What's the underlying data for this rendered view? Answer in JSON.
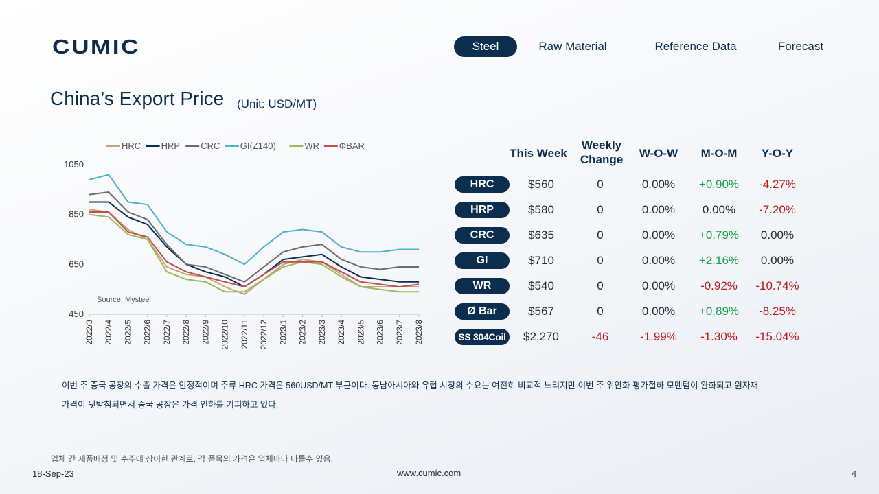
{
  "brand": {
    "name": "CUMIC"
  },
  "nav": {
    "items": [
      {
        "label": "Steel",
        "active": true
      },
      {
        "label": "Raw Material",
        "active": false
      },
      {
        "label": "Reference Data",
        "active": false
      },
      {
        "label": "Forecast",
        "active": false
      }
    ]
  },
  "page": {
    "title": "China’s Export Price",
    "unit": "(Unit: USD/MT)"
  },
  "chart_data": {
    "type": "line",
    "source": "Source: Mysteel",
    "ylim": [
      450,
      1050
    ],
    "yticks": [
      450,
      650,
      850,
      1050
    ],
    "x": [
      "2022/3",
      "2022/4",
      "2022/5",
      "2022/6",
      "2022/7",
      "2022/8",
      "2022/9",
      "2022/10",
      "2022/11",
      "2022/12",
      "2023/1",
      "2023/2",
      "2023/3",
      "2023/4",
      "2023/5",
      "2023/6",
      "2023/7",
      "2023/8"
    ],
    "legend_position": "top",
    "grid": false,
    "series": [
      {
        "name": "HRC",
        "color": "#c9a37a",
        "values": [
          870,
          860,
          790,
          750,
          640,
          610,
          600,
          560,
          530,
          590,
          650,
          670,
          660,
          610,
          560,
          560,
          560,
          560
        ]
      },
      {
        "name": "HRP",
        "color": "#0b2e4f",
        "values": [
          900,
          900,
          840,
          810,
          720,
          650,
          620,
          600,
          560,
          610,
          670,
          680,
          690,
          640,
          600,
          590,
          580,
          580
        ]
      },
      {
        "name": "CRC",
        "color": "#6b6b6b",
        "values": [
          930,
          940,
          860,
          830,
          730,
          650,
          640,
          610,
          580,
          640,
          700,
          720,
          730,
          670,
          640,
          630,
          640,
          640
        ]
      },
      {
        "name": "GI(Z140)",
        "color": "#4fb3c9",
        "values": [
          990,
          1010,
          900,
          890,
          780,
          730,
          720,
          690,
          650,
          720,
          780,
          790,
          780,
          720,
          700,
          700,
          710,
          710
        ]
      },
      {
        "name": "WR",
        "color": "#9bbb59",
        "values": [
          850,
          840,
          770,
          750,
          620,
          590,
          580,
          540,
          540,
          590,
          640,
          660,
          650,
          600,
          560,
          550,
          540,
          540
        ]
      },
      {
        "name": "ΦBAR",
        "color": "#c0504d",
        "values": [
          860,
          860,
          780,
          760,
          660,
          620,
          600,
          580,
          560,
          610,
          660,
          660,
          660,
          620,
          580,
          570,
          560,
          570
        ]
      }
    ]
  },
  "table": {
    "headers": {
      "this_week": "This Week",
      "weekly_change_1": "Weekly",
      "weekly_change_2": "Change",
      "wow": "W-O-W",
      "mom": "M-O-M",
      "yoy": "Y-O-Y"
    },
    "rows": [
      {
        "label": "HRC",
        "this_week": "$560",
        "change": "0",
        "wow": "0.00%",
        "mom": "+0.90%",
        "yoy": "-4.27%"
      },
      {
        "label": "HRP",
        "this_week": "$580",
        "change": "0",
        "wow": "0.00%",
        "mom": "0.00%",
        "yoy": "-7.20%"
      },
      {
        "label": "CRC",
        "this_week": "$635",
        "change": "0",
        "wow": "0.00%",
        "mom": "+0.79%",
        "yoy": "0.00%"
      },
      {
        "label": "GI",
        "this_week": "$710",
        "change": "0",
        "wow": "0.00%",
        "mom": "+2.16%",
        "yoy": "0.00%"
      },
      {
        "label": "WR",
        "this_week": "$540",
        "change": "0",
        "wow": "0.00%",
        "mom": "-0.92%",
        "yoy": "-10.74%"
      },
      {
        "label": "Ø Bar",
        "this_week": "$567",
        "change": "0",
        "wow": "0.00%",
        "mom": "+0.89%",
        "yoy": "-8.25%"
      },
      {
        "label": "SS 304Coil",
        "this_week": "$2,270",
        "change": "-46",
        "wow": "-1.99%",
        "mom": "-1.30%",
        "yoy": "-15.04%"
      }
    ]
  },
  "description": {
    "line1": "이번 주 중국 공장의 수출 가격은 안정적이며 주류 HRC 가격은 560USD/MT 부근이다. 동남아시아와 유럽 시장의 수요는 여전히 비교적 느리지만 이번 주 위안화 평가절하 모멘텀이 완화되고 원자재",
    "line2": "가격이 뒷받침되면서 중국 공장은 가격 인하를 기피하고 있다."
  },
  "note": "업체 간 제품배정 및 수주에 상이한 관계로, 각 품목의 가격은 업체마다 다를수 있음.",
  "footer": {
    "date": "18-Sep-23",
    "url": "www.cumic.com",
    "page": "4"
  },
  "colors": {
    "navy": "#0b2e4f",
    "positive": "#16a34a",
    "negative": "#b91c1c"
  }
}
